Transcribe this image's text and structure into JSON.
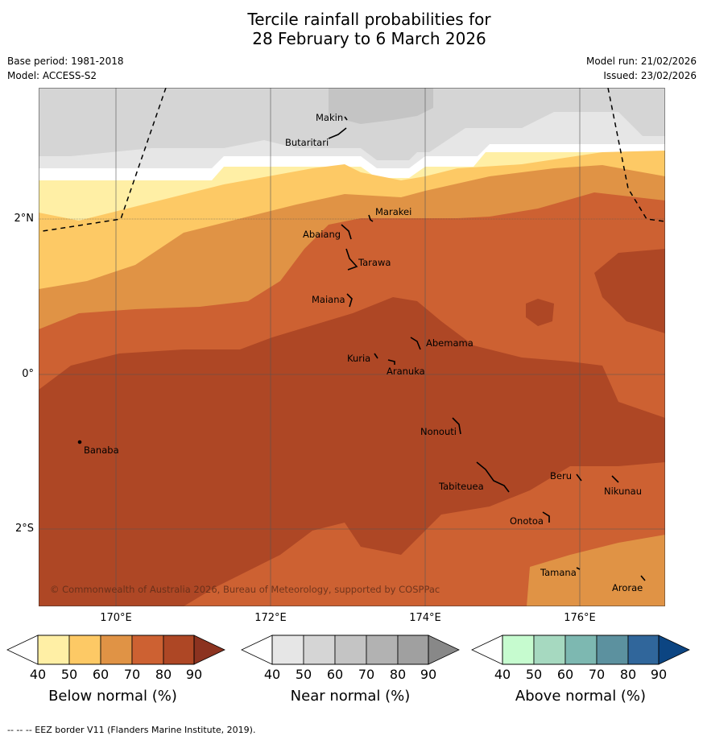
{
  "title": {
    "line1": "Tercile rainfall probabilities for",
    "line2": "28 February to 6 March 2026"
  },
  "meta": {
    "base_period": "Base period: 1981-2018",
    "model": "Model: ACCESS-S2",
    "model_run": "Model run: 21/02/2026",
    "issued": "Issued: 23/02/2026"
  },
  "axes": {
    "lat_labels": [
      "2°N",
      "0°",
      "2°S"
    ],
    "lon_labels": [
      "170°E",
      "172°E",
      "174°E",
      "176°E"
    ]
  },
  "places": [
    "Makin",
    "Butaritari",
    "Marakei",
    "Abaiang",
    "Tarawa",
    "Maiana",
    "Abemama",
    "Kuria",
    "Aranuka",
    "Nonouti",
    "Banaba",
    "Beru",
    "Tabiteuea",
    "Nikunau",
    "Onotoa",
    "Tamana",
    "Arorae"
  ],
  "copyright": "© Commonwealth of Australia 2026, Bureau of Meteorology, supported by COSPPac",
  "colorbars": {
    "ticks": [
      "40",
      "50",
      "60",
      "70",
      "80",
      "90"
    ],
    "below": {
      "title": "Below normal (%)",
      "colors": [
        "#ffefa5",
        "#fdc965",
        "#e09345",
        "#cd6132",
        "#ae4725",
        "#8c3320"
      ]
    },
    "near": {
      "title": "Near normal (%)",
      "colors": [
        "#e6e6e6",
        "#d5d5d5",
        "#c4c4c4",
        "#b2b2b2",
        "#a0a0a0",
        "#888888"
      ]
    },
    "above": {
      "title": "Above normal (%)",
      "colors": [
        "#c6fbcf",
        "#a6d9c0",
        "#7db8b1",
        "#5c919f",
        "#30669b",
        "#0c4582"
      ]
    }
  },
  "footer": "--  --  -- EEZ border V11 (Flanders Marine Institute, 2019)."
}
